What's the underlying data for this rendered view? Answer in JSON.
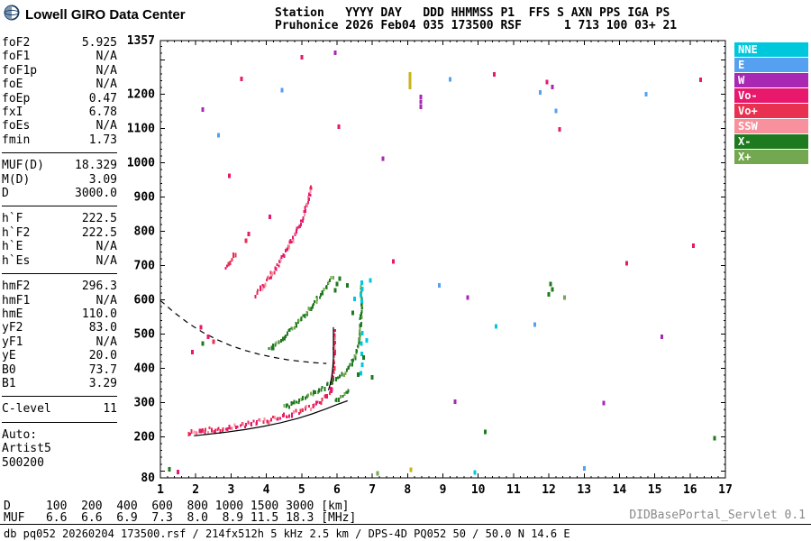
{
  "header": {
    "brand": "Lowell GIRO Data Center",
    "line1": "Station   YYYY DAY   DDD HHMMSS P1  FFS S AXN PPS IGA PS",
    "line2": "Pruhonice 2026 Feb04 035 173500 RSF      1 713 100 03+ 21"
  },
  "sidebar": {
    "groups": [
      {
        "rows": [
          {
            "label": "foF2",
            "value": "5.925"
          },
          {
            "label": "foF1",
            "value": "N/A"
          },
          {
            "label": "foF1p",
            "value": "N/A"
          },
          {
            "label": "foE",
            "value": "N/A"
          },
          {
            "label": "foEp",
            "value": "0.47"
          },
          {
            "label": "fxI",
            "value": "6.78"
          },
          {
            "label": "foEs",
            "value": "N/A"
          },
          {
            "label": "fmin",
            "value": "1.73"
          }
        ]
      },
      {
        "rows": [
          {
            "label": "MUF(D)",
            "value": "18.329"
          },
          {
            "label": "M(D)",
            "value": "3.09"
          },
          {
            "label": "D",
            "value": "3000.0"
          }
        ]
      },
      {
        "rows": [
          {
            "label": "h`F",
            "value": "222.5"
          },
          {
            "label": "h`F2",
            "value": "222.5"
          },
          {
            "label": "h`E",
            "value": "N/A"
          },
          {
            "label": "h`Es",
            "value": "N/A"
          }
        ]
      },
      {
        "rows": [
          {
            "label": "hmF2",
            "value": "296.3"
          },
          {
            "label": "hmF1",
            "value": "N/A"
          },
          {
            "label": "hmE",
            "value": "110.0"
          },
          {
            "label": "yF2",
            "value": "83.0"
          },
          {
            "label": "yF1",
            "value": "N/A"
          },
          {
            "label": "yE",
            "value": "20.0"
          },
          {
            "label": "B0",
            "value": "73.7"
          },
          {
            "label": "B1",
            "value": "3.29"
          }
        ]
      },
      {
        "rows": [
          {
            "label": "C-level",
            "value": "11"
          }
        ]
      },
      {
        "rows": [
          {
            "label": "Auto:"
          },
          {
            "label": "Artist5"
          },
          {
            "label": "500200"
          }
        ]
      }
    ]
  },
  "legend": {
    "items": [
      {
        "label": "NNE",
        "color_key": "nne"
      },
      {
        "label": "E",
        "color_key": "e"
      },
      {
        "label": "W",
        "color_key": "w"
      },
      {
        "label": "Vo-",
        "color_key": "vo-"
      },
      {
        "label": "Vo+",
        "color_key": "vo+"
      },
      {
        "label": "SSW",
        "color_key": "ssw"
      },
      {
        "label": "X-",
        "color_key": "x-"
      },
      {
        "label": "X+",
        "color_key": "x+"
      }
    ]
  },
  "footer": {
    "d_line": "D     100  200  400  600  800 1000 1500 3000 [km]",
    "muf_line": "MUF   6.6  6.6  6.9  7.3  8.0  8.9 11.5 18.3 [MHz]",
    "status": "db pq052 20260204 173500.rsf / 214fx512h 5 kHz 2.5 km / DPS-4D PQ052 50 / 50.0 N 14.6 E",
    "servlet": "DIDBasePortal_Servlet 0.1"
  },
  "chart_data": {
    "type": "scatter",
    "x_unit": "MHz",
    "y_unit": "km",
    "xlim": [
      1,
      17
    ],
    "ylim": [
      80,
      1357
    ],
    "xticks": [
      1,
      2,
      3,
      4,
      5,
      6,
      7,
      8,
      9,
      10,
      11,
      12,
      13,
      14,
      15,
      16,
      17
    ],
    "yticks": [
      80,
      200,
      300,
      400,
      500,
      600,
      700,
      800,
      900,
      1000,
      1100,
      1200,
      1357
    ],
    "palette": {
      "nne": "#00C8DC",
      "e": "#55A0F0",
      "w": "#A828B4",
      "vo-": "#E8186C",
      "vo+": "#E83050",
      "ssw": "#F8919E",
      "x-": "#1E7A1E",
      "x+": "#74A850",
      "yellow": "#C8B414",
      "black": "#000000"
    },
    "traces": [
      {
        "name": "f2-ordinary-trace",
        "colors": [
          "vo-",
          "vo+",
          "vo-",
          "ssw",
          "vo+",
          "vo-"
        ],
        "jitter": 5,
        "points": [
          [
            1.8,
            211
          ],
          [
            2.0,
            213
          ],
          [
            2.2,
            215
          ],
          [
            2.4,
            218
          ],
          [
            2.6,
            221
          ],
          [
            2.8,
            224
          ],
          [
            3.0,
            227
          ],
          [
            3.2,
            230
          ],
          [
            3.4,
            234
          ],
          [
            3.6,
            238
          ],
          [
            3.8,
            242
          ],
          [
            4.0,
            247
          ],
          [
            4.2,
            252
          ],
          [
            4.4,
            257
          ],
          [
            4.6,
            263
          ],
          [
            4.8,
            269
          ],
          [
            5.0,
            276
          ],
          [
            5.15,
            282
          ],
          [
            5.3,
            289
          ],
          [
            5.45,
            298
          ],
          [
            5.6,
            309
          ],
          [
            5.7,
            319
          ],
          [
            5.78,
            330
          ],
          [
            5.84,
            344
          ],
          [
            5.88,
            360
          ],
          [
            5.9,
            378
          ],
          [
            5.91,
            398
          ],
          [
            5.92,
            420
          ],
          [
            5.925,
            445
          ],
          [
            5.93,
            472
          ],
          [
            5.93,
            500
          ],
          [
            5.93,
            518
          ]
        ]
      },
      {
        "name": "f2-extraordinary-trace",
        "colors": [
          "x-",
          "x-",
          "x+",
          "x-"
        ],
        "jitter": 4,
        "points": [
          [
            4.5,
            286
          ],
          [
            4.7,
            294
          ],
          [
            4.9,
            303
          ],
          [
            5.1,
            313
          ],
          [
            5.3,
            324
          ],
          [
            5.5,
            336
          ],
          [
            5.7,
            349
          ],
          [
            5.9,
            362
          ],
          [
            6.05,
            373
          ],
          [
            6.2,
            385
          ],
          [
            6.32,
            398
          ],
          [
            6.42,
            414
          ],
          [
            6.5,
            432
          ],
          [
            6.57,
            455
          ],
          [
            6.62,
            482
          ],
          [
            6.66,
            515
          ],
          [
            6.68,
            550
          ],
          [
            6.7,
            590
          ],
          [
            6.7,
            625
          ],
          [
            6.7,
            648
          ]
        ]
      },
      {
        "name": "second-hop-ordinary-trace",
        "colors": [
          "vo-",
          "vo+",
          "vo-",
          "vo-",
          "ssw"
        ],
        "jitter": 5,
        "points": [
          [
            3.7,
            612
          ],
          [
            3.85,
            632
          ],
          [
            4.0,
            653
          ],
          [
            4.15,
            675
          ],
          [
            4.3,
            698
          ],
          [
            4.45,
            722
          ],
          [
            4.6,
            748
          ],
          [
            4.75,
            776
          ],
          [
            4.88,
            803
          ],
          [
            5.0,
            830
          ],
          [
            5.1,
            858
          ],
          [
            5.18,
            888
          ],
          [
            5.24,
            915
          ],
          [
            5.28,
            935
          ]
        ]
      },
      {
        "name": "second-hop-extraordinary-trace",
        "colors": [
          "x-",
          "x+",
          "x-",
          "x-"
        ],
        "jitter": 4,
        "points": [
          [
            4.1,
            452
          ],
          [
            4.3,
            471
          ],
          [
            4.5,
            491
          ],
          [
            4.7,
            512
          ],
          [
            4.9,
            534
          ],
          [
            5.1,
            558
          ],
          [
            5.3,
            583
          ],
          [
            5.5,
            610
          ],
          [
            5.68,
            635
          ],
          [
            5.82,
            655
          ],
          [
            5.92,
            670
          ]
        ]
      },
      {
        "name": "oblique-pink-patch",
        "colors": [
          "vo-",
          "vo+"
        ],
        "jitter": 4,
        "points": [
          [
            2.85,
            692
          ],
          [
            2.95,
            707
          ],
          [
            3.05,
            723
          ],
          [
            3.15,
            740
          ]
        ]
      },
      {
        "name": "x-trace-low-tail",
        "colors": [
          "x-",
          "x+",
          "x-"
        ],
        "jitter": 3,
        "points": [
          [
            5.95,
            305
          ],
          [
            6.1,
            315
          ],
          [
            6.25,
            327
          ],
          [
            6.38,
            340
          ]
        ]
      }
    ],
    "curves": [
      {
        "name": "transmission-curve",
        "style": "dashed",
        "points": [
          [
            1.0,
            598
          ],
          [
            1.4,
            562
          ],
          [
            1.8,
            531
          ],
          [
            2.2,
            505
          ],
          [
            2.6,
            484
          ],
          [
            3.0,
            466
          ],
          [
            3.4,
            452
          ],
          [
            3.8,
            441
          ],
          [
            4.2,
            432
          ],
          [
            4.6,
            425
          ],
          [
            5.0,
            420
          ],
          [
            5.4,
            416
          ],
          [
            5.7,
            414
          ]
        ]
      },
      {
        "name": "true-height-profile",
        "style": "solid",
        "points": [
          [
            1.95,
            203
          ],
          [
            2.4,
            208
          ],
          [
            2.9,
            214
          ],
          [
            3.4,
            221
          ],
          [
            3.9,
            230
          ],
          [
            4.4,
            241
          ],
          [
            4.9,
            254
          ],
          [
            5.3,
            267
          ],
          [
            5.7,
            282
          ],
          [
            6.0,
            294
          ],
          [
            6.3,
            305
          ]
        ]
      },
      {
        "name": "fof2-asymptote",
        "style": "solid",
        "points": [
          [
            5.76,
            336
          ],
          [
            5.81,
            354
          ],
          [
            5.85,
            375
          ],
          [
            5.88,
            400
          ],
          [
            5.9,
            430
          ],
          [
            5.9,
            462
          ],
          [
            5.9,
            495
          ],
          [
            5.9,
            520
          ]
        ]
      }
    ],
    "specks": [
      [
        1.25,
        105,
        "x-"
      ],
      [
        1.5,
        97,
        "vo-"
      ],
      [
        1.9,
        447,
        "vo-"
      ],
      [
        2.2,
        472,
        "x-"
      ],
      [
        2.35,
        492,
        "vo-"
      ],
      [
        2.5,
        478,
        "vo+"
      ],
      [
        2.15,
        520,
        "vo-"
      ],
      [
        2.2,
        1155,
        "w"
      ],
      [
        2.65,
        1080,
        "e"
      ],
      [
        3.3,
        1245,
        "vo-"
      ],
      [
        2.95,
        962,
        "vo-"
      ],
      [
        5.0,
        1308,
        "vo-"
      ],
      [
        5.95,
        1322,
        "w"
      ],
      [
        4.45,
        1212,
        "e"
      ],
      [
        4.1,
        842,
        "vo-"
      ],
      [
        3.5,
        792,
        "vo-"
      ],
      [
        3.42,
        772,
        "vo+"
      ],
      [
        6.05,
        1105,
        "vo-"
      ],
      [
        7.3,
        1012,
        "w"
      ],
      [
        7.6,
        712,
        "vo-"
      ],
      [
        8.07,
        1258,
        "yellow"
      ],
      [
        8.07,
        1246,
        "yellow"
      ],
      [
        8.07,
        1234,
        "yellow"
      ],
      [
        8.07,
        1222,
        "yellow"
      ],
      [
        8.1,
        104,
        "yellow"
      ],
      [
        8.37,
        1192,
        "w"
      ],
      [
        8.37,
        1178,
        "w"
      ],
      [
        8.37,
        1164,
        "w"
      ],
      [
        9.2,
        1244,
        "e"
      ],
      [
        10.45,
        1258,
        "vo-"
      ],
      [
        11.95,
        1236,
        "vo-"
      ],
      [
        12.1,
        1222,
        "w"
      ],
      [
        11.75,
        1206,
        "e"
      ],
      [
        12.3,
        1098,
        "vo-"
      ],
      [
        12.2,
        1152,
        "e"
      ],
      [
        16.3,
        1242,
        "vo-"
      ],
      [
        14.75,
        1200,
        "e"
      ],
      [
        12.05,
        646,
        "x-"
      ],
      [
        12.1,
        630,
        "x-"
      ],
      [
        12.0,
        616,
        "x-"
      ],
      [
        12.45,
        606,
        "x+"
      ],
      [
        11.6,
        528,
        "e"
      ],
      [
        10.5,
        522,
        "nne"
      ],
      [
        9.7,
        606,
        "w"
      ],
      [
        8.9,
        642,
        "e"
      ],
      [
        14.2,
        706,
        "vo-"
      ],
      [
        16.1,
        758,
        "vo-"
      ],
      [
        15.2,
        492,
        "w"
      ],
      [
        9.35,
        302,
        "w"
      ],
      [
        10.2,
        214,
        "x-"
      ],
      [
        13.55,
        298,
        "w"
      ],
      [
        16.7,
        196,
        "x-"
      ],
      [
        9.9,
        96,
        "nne"
      ],
      [
        13.0,
        108,
        "e"
      ],
      [
        7.15,
        93,
        "x+"
      ],
      [
        6.7,
        650,
        "nne"
      ],
      [
        6.72,
        632,
        "nne"
      ],
      [
        6.68,
        614,
        "nne"
      ],
      [
        6.7,
        596,
        "nne"
      ],
      [
        6.71,
        502,
        "nne"
      ],
      [
        6.69,
        472,
        "nne"
      ],
      [
        6.7,
        442,
        "nne"
      ],
      [
        6.72,
        410,
        "nne"
      ],
      [
        6.68,
        386,
        "nne"
      ],
      [
        6.95,
        657,
        "nne"
      ],
      [
        6.5,
        602,
        "nne"
      ],
      [
        6.45,
        562,
        "x-"
      ],
      [
        6.3,
        642,
        "x-"
      ],
      [
        6.85,
        482,
        "nne"
      ],
      [
        6.75,
        432,
        "x-"
      ],
      [
        6.6,
        382,
        "x-"
      ],
      [
        7.0,
        374,
        "x-"
      ],
      [
        6.0,
        646,
        "x-"
      ],
      [
        6.08,
        662,
        "x-"
      ],
      [
        5.95,
        628,
        "x-"
      ]
    ]
  }
}
